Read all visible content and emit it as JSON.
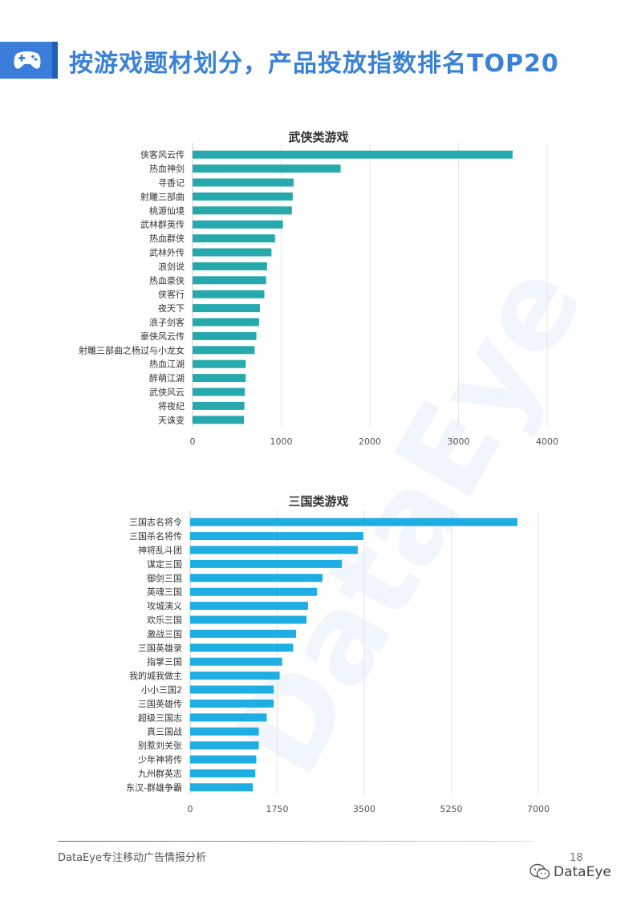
{
  "page": {
    "title": "按游戏题材划分，产品投放指数排名TOP20",
    "icon": "gamepad-icon",
    "footer_text": "DataEye专注移动广告情报分析",
    "page_number": "18",
    "brand": "DataEye",
    "brand_icon": "wechat-icon",
    "accent_color": "#3a7ddb"
  },
  "chart_data": [
    {
      "type": "bar",
      "orientation": "horizontal",
      "title": "武侠类游戏",
      "color": "#26a9ac",
      "categories": [
        "侠客风云传",
        "热血神剑",
        "寻香记",
        "射雕三部曲",
        "桃源仙境",
        "武林群英传",
        "热血群侠",
        "武林外传",
        "浪剑说",
        "热血豪侠",
        "侠客行",
        "夜天下",
        "浪子剑客",
        "豪侠风云传",
        "射雕三部曲之杨过与小龙女",
        "热血江湖",
        "醉萌江湖",
        "武侠风云",
        "将夜纪",
        "天诛变"
      ],
      "values": [
        3610,
        1670,
        1140,
        1130,
        1120,
        1020,
        930,
        890,
        840,
        830,
        810,
        760,
        750,
        720,
        700,
        600,
        600,
        590,
        585,
        580
      ],
      "xlim": [
        0,
        4000
      ],
      "ticks": [
        0,
        1000,
        2000,
        3000,
        4000
      ],
      "tick_labels": [
        "0",
        "1000",
        "2000",
        "3000",
        "4000"
      ],
      "grid": true
    },
    {
      "type": "bar",
      "orientation": "horizontal",
      "title": "三国类游戏",
      "color": "#1eaee3",
      "categories": [
        "三国志名将令",
        "三国杀名将传",
        "神将乱斗团",
        "谋定三国",
        "御剑三国",
        "英魂三国",
        "攻城演义",
        "欢乐三国",
        "激战三国",
        "三国英雄录",
        "指掌三国",
        "我的城我做主",
        "小小三国2",
        "三国英雄传",
        "超级三国志",
        "真三国战",
        "别惹刘关张",
        "少年神将传",
        "九州群英志",
        "东汉-群雄争霸"
      ],
      "values": [
        6580,
        3480,
        3370,
        3050,
        2660,
        2550,
        2370,
        2340,
        2130,
        2070,
        1850,
        1800,
        1680,
        1680,
        1540,
        1380,
        1380,
        1330,
        1310,
        1260
      ],
      "xlim": [
        0,
        7000
      ],
      "ticks": [
        0,
        1750,
        3500,
        5250,
        7000
      ],
      "tick_labels": [
        "0",
        "1750",
        "3500",
        "5250",
        "7000"
      ],
      "grid": true
    }
  ]
}
